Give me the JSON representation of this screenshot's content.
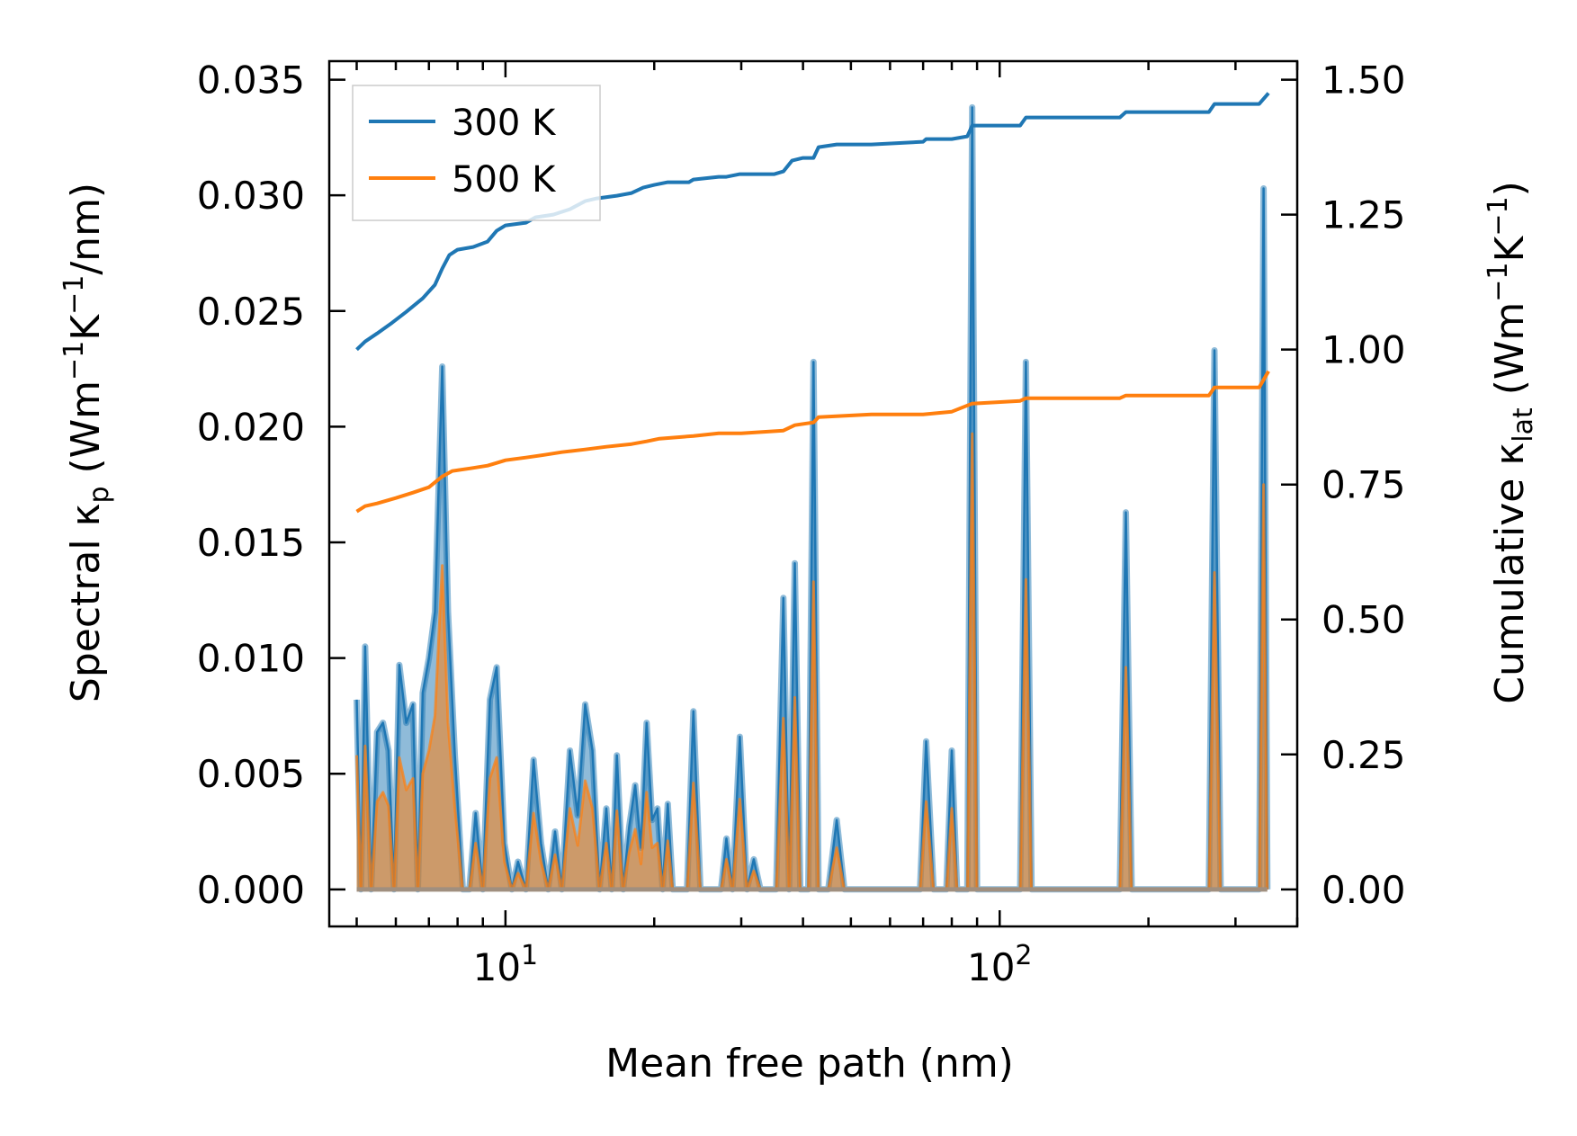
{
  "chart_data": {
    "type": "line+area",
    "x_scale": "log",
    "xlim": [
      4.4,
      400
    ],
    "xlabel": "Mean free path (nm)",
    "x_ticks_major": [
      {
        "value": 10,
        "base": "10",
        "exp": "1"
      },
      {
        "value": 100,
        "base": "10",
        "exp": "2"
      }
    ],
    "y_left": {
      "label_parts": [
        "Spectral κ",
        "p",
        " (Wm",
        "−1",
        "K",
        "−1",
        "/nm)"
      ],
      "lim": [
        -0.0016,
        0.0358
      ],
      "ticks": [
        0.0,
        0.005,
        0.01,
        0.015,
        0.02,
        0.025,
        0.03,
        0.035
      ],
      "tick_labels": [
        "0.000",
        "0.005",
        "0.010",
        "0.015",
        "0.020",
        "0.025",
        "0.030",
        "0.035"
      ]
    },
    "y_right": {
      "label_parts": [
        "Cumulative κ",
        "lat",
        " (Wm",
        "−1",
        "K",
        "−1",
        ")"
      ],
      "lim": [
        -0.0686,
        1.5343
      ],
      "ticks": [
        0.0,
        0.25,
        0.5,
        0.75,
        1.0,
        1.25,
        1.5
      ],
      "tick_labels": [
        "0.00",
        "0.25",
        "0.50",
        "0.75",
        "1.00",
        "1.25",
        "1.50"
      ]
    },
    "legend": {
      "position": "top-left",
      "entries": [
        "300 K",
        "500 K"
      ]
    },
    "colors": {
      "300 K": "#1f77b4",
      "500 K": "#ff7f0e"
    },
    "spectral": {
      "300 K": [
        [
          5.0,
          0.0082
        ],
        [
          5.1,
          0.0
        ],
        [
          5.2,
          0.0105
        ],
        [
          5.35,
          0.0
        ],
        [
          5.5,
          0.0068
        ],
        [
          5.65,
          0.0072
        ],
        [
          5.8,
          0.006
        ],
        [
          5.95,
          0.0
        ],
        [
          6.1,
          0.0097
        ],
        [
          6.3,
          0.0072
        ],
        [
          6.5,
          0.008
        ],
        [
          6.65,
          0.0
        ],
        [
          6.8,
          0.0085
        ],
        [
          7.0,
          0.01
        ],
        [
          7.2,
          0.012
        ],
        [
          7.45,
          0.0226
        ],
        [
          7.65,
          0.012
        ],
        [
          7.9,
          0.0058
        ],
        [
          8.2,
          0.0
        ],
        [
          8.45,
          0.0
        ],
        [
          8.7,
          0.0033
        ],
        [
          9.0,
          0.0
        ],
        [
          9.3,
          0.0082
        ],
        [
          9.6,
          0.0096
        ],
        [
          9.95,
          0.002
        ],
        [
          10.3,
          0.0
        ],
        [
          10.6,
          0.0012
        ],
        [
          11.0,
          0.0
        ],
        [
          11.4,
          0.0056
        ],
        [
          11.8,
          0.002
        ],
        [
          12.2,
          0.0
        ],
        [
          12.6,
          0.0025
        ],
        [
          13.0,
          0.0
        ],
        [
          13.5,
          0.006
        ],
        [
          14.0,
          0.0032
        ],
        [
          14.5,
          0.008
        ],
        [
          15.0,
          0.006
        ],
        [
          15.5,
          0.0
        ],
        [
          16.0,
          0.0035
        ],
        [
          16.4,
          0.0
        ],
        [
          16.8,
          0.0058
        ],
        [
          17.3,
          0.0
        ],
        [
          17.8,
          0.0027
        ],
        [
          18.3,
          0.0045
        ],
        [
          18.8,
          0.0018
        ],
        [
          19.3,
          0.0072
        ],
        [
          19.8,
          0.003
        ],
        [
          20.3,
          0.0035
        ],
        [
          20.8,
          0.0
        ],
        [
          21.3,
          0.0037
        ],
        [
          21.8,
          0.0
        ],
        [
          22.4,
          0.0
        ],
        [
          23.3,
          0.0
        ],
        [
          24.0,
          0.0077
        ],
        [
          24.8,
          0.0
        ],
        [
          26.0,
          0.0
        ],
        [
          27.3,
          0.0
        ],
        [
          28.0,
          0.0022
        ],
        [
          28.8,
          0.0
        ],
        [
          29.8,
          0.0066
        ],
        [
          30.8,
          0.0
        ],
        [
          31.8,
          0.0013
        ],
        [
          32.8,
          0.0
        ],
        [
          34.0,
          0.0
        ],
        [
          35.3,
          0.0
        ],
        [
          36.5,
          0.0126
        ],
        [
          37.5,
          0.0
        ],
        [
          38.5,
          0.0141
        ],
        [
          39.5,
          0.0
        ],
        [
          41.0,
          0.0
        ],
        [
          42.0,
          0.0228
        ],
        [
          43.0,
          0.0
        ],
        [
          45.0,
          0.0
        ],
        [
          46.8,
          0.003
        ],
        [
          48.5,
          0.0
        ],
        [
          55.0,
          0.0
        ],
        [
          62.0,
          0.0
        ],
        [
          69.0,
          0.0
        ],
        [
          71.0,
          0.0064
        ],
        [
          73.5,
          0.0
        ],
        [
          78.0,
          0.0
        ],
        [
          80.0,
          0.006
        ],
        [
          82.0,
          0.0
        ],
        [
          86.0,
          0.0
        ],
        [
          88.0,
          0.0338
        ],
        [
          90.0,
          0.0
        ],
        [
          100.0,
          0.0
        ],
        [
          110.0,
          0.0
        ],
        [
          113.0,
          0.0228
        ],
        [
          116.0,
          0.0
        ],
        [
          150.0,
          0.0
        ],
        [
          175.0,
          0.0
        ],
        [
          180.0,
          0.0163
        ],
        [
          185.0,
          0.0
        ],
        [
          240.0,
          0.0
        ],
        [
          265.0,
          0.0
        ],
        [
          272.0,
          0.0233
        ],
        [
          280.0,
          0.0
        ],
        [
          320.0,
          0.0
        ],
        [
          335.0,
          0.0
        ],
        [
          342.0,
          0.0303
        ],
        [
          348.0,
          0.0
        ]
      ],
      "500 K": [
        [
          5.0,
          0.0058
        ],
        [
          5.1,
          0.0
        ],
        [
          5.2,
          0.0062
        ],
        [
          5.35,
          0.0
        ],
        [
          5.5,
          0.0038
        ],
        [
          5.65,
          0.0042
        ],
        [
          5.8,
          0.0036
        ],
        [
          5.95,
          0.0
        ],
        [
          6.1,
          0.0057
        ],
        [
          6.3,
          0.0043
        ],
        [
          6.5,
          0.0048
        ],
        [
          6.65,
          0.0
        ],
        [
          6.8,
          0.005
        ],
        [
          7.0,
          0.006
        ],
        [
          7.2,
          0.0075
        ],
        [
          7.45,
          0.014
        ],
        [
          7.65,
          0.0072
        ],
        [
          7.9,
          0.0035
        ],
        [
          8.2,
          0.0
        ],
        [
          8.45,
          0.0
        ],
        [
          8.7,
          0.002
        ],
        [
          9.0,
          0.0
        ],
        [
          9.3,
          0.0048
        ],
        [
          9.6,
          0.0057
        ],
        [
          9.95,
          0.0012
        ],
        [
          10.3,
          0.0
        ],
        [
          10.6,
          0.0007
        ],
        [
          11.0,
          0.0
        ],
        [
          11.4,
          0.0033
        ],
        [
          11.8,
          0.0012
        ],
        [
          12.2,
          0.0
        ],
        [
          12.6,
          0.0015
        ],
        [
          13.0,
          0.0
        ],
        [
          13.5,
          0.0035
        ],
        [
          14.0,
          0.0019
        ],
        [
          14.5,
          0.0047
        ],
        [
          15.0,
          0.0035
        ],
        [
          15.5,
          0.0
        ],
        [
          16.0,
          0.002
        ],
        [
          16.4,
          0.0
        ],
        [
          16.8,
          0.0034
        ],
        [
          17.3,
          0.0
        ],
        [
          17.8,
          0.0016
        ],
        [
          18.3,
          0.0026
        ],
        [
          18.8,
          0.0011
        ],
        [
          19.3,
          0.0042
        ],
        [
          19.8,
          0.0018
        ],
        [
          20.3,
          0.002
        ],
        [
          20.8,
          0.0
        ],
        [
          21.3,
          0.0021
        ],
        [
          21.8,
          0.0
        ],
        [
          22.4,
          0.0
        ],
        [
          23.3,
          0.0
        ],
        [
          24.0,
          0.0046
        ],
        [
          24.8,
          0.0
        ],
        [
          26.0,
          0.0
        ],
        [
          27.3,
          0.0
        ],
        [
          28.0,
          0.0013
        ],
        [
          28.8,
          0.0
        ],
        [
          29.8,
          0.0039
        ],
        [
          30.8,
          0.0
        ],
        [
          31.8,
          0.0008
        ],
        [
          32.8,
          0.0
        ],
        [
          34.0,
          0.0
        ],
        [
          35.3,
          0.0
        ],
        [
          36.5,
          0.0074
        ],
        [
          37.5,
          0.0
        ],
        [
          38.5,
          0.0083
        ],
        [
          39.5,
          0.0
        ],
        [
          41.0,
          0.0
        ],
        [
          42.0,
          0.0133
        ],
        [
          43.0,
          0.0
        ],
        [
          45.0,
          0.0
        ],
        [
          46.8,
          0.0018
        ],
        [
          48.5,
          0.0
        ],
        [
          55.0,
          0.0
        ],
        [
          62.0,
          0.0
        ],
        [
          69.0,
          0.0
        ],
        [
          71.0,
          0.0038
        ],
        [
          73.5,
          0.0
        ],
        [
          78.0,
          0.0
        ],
        [
          80.0,
          0.0035
        ],
        [
          82.0,
          0.0
        ],
        [
          86.0,
          0.0
        ],
        [
          88.0,
          0.0197
        ],
        [
          90.0,
          0.0
        ],
        [
          100.0,
          0.0
        ],
        [
          110.0,
          0.0
        ],
        [
          113.0,
          0.0134
        ],
        [
          116.0,
          0.0
        ],
        [
          150.0,
          0.0
        ],
        [
          175.0,
          0.0
        ],
        [
          180.0,
          0.0096
        ],
        [
          185.0,
          0.0
        ],
        [
          240.0,
          0.0
        ],
        [
          265.0,
          0.0
        ],
        [
          272.0,
          0.0137
        ],
        [
          280.0,
          0.0
        ],
        [
          320.0,
          0.0
        ],
        [
          335.0,
          0.0
        ],
        [
          342.0,
          0.0175
        ],
        [
          348.0,
          0.0
        ]
      ]
    },
    "cumulative": {
      "300 K": [
        [
          5.0,
          1.0
        ],
        [
          5.2,
          1.015
        ],
        [
          5.5,
          1.03
        ],
        [
          5.9,
          1.05
        ],
        [
          6.3,
          1.07
        ],
        [
          6.8,
          1.095
        ],
        [
          7.2,
          1.12
        ],
        [
          7.45,
          1.15
        ],
        [
          7.7,
          1.175
        ],
        [
          8.0,
          1.185
        ],
        [
          8.6,
          1.19
        ],
        [
          9.2,
          1.2
        ],
        [
          9.6,
          1.22
        ],
        [
          10.0,
          1.23
        ],
        [
          11.0,
          1.235
        ],
        [
          11.5,
          1.245
        ],
        [
          12.5,
          1.25
        ],
        [
          13.5,
          1.26
        ],
        [
          14.5,
          1.275
        ],
        [
          15.3,
          1.28
        ],
        [
          16.8,
          1.285
        ],
        [
          18.0,
          1.29
        ],
        [
          19.0,
          1.3
        ],
        [
          20.0,
          1.305
        ],
        [
          21.3,
          1.31
        ],
        [
          23.5,
          1.31
        ],
        [
          24.0,
          1.315
        ],
        [
          27.0,
          1.32
        ],
        [
          28.0,
          1.32
        ],
        [
          29.8,
          1.325
        ],
        [
          35.0,
          1.325
        ],
        [
          36.5,
          1.33
        ],
        [
          38.0,
          1.35
        ],
        [
          40.0,
          1.355
        ],
        [
          42.0,
          1.355
        ],
        [
          43.0,
          1.375
        ],
        [
          46.8,
          1.38
        ],
        [
          55.0,
          1.38
        ],
        [
          70.0,
          1.385
        ],
        [
          71.0,
          1.39
        ],
        [
          80.0,
          1.39
        ],
        [
          86.0,
          1.395
        ],
        [
          88.0,
          1.415
        ],
        [
          110.0,
          1.415
        ],
        [
          113.0,
          1.43
        ],
        [
          175.0,
          1.43
        ],
        [
          180.0,
          1.44
        ],
        [
          265.0,
          1.44
        ],
        [
          272.0,
          1.455
        ],
        [
          335.0,
          1.455
        ],
        [
          350.0,
          1.475
        ]
      ],
      "500 K": [
        [
          5.0,
          0.7
        ],
        [
          5.2,
          0.71
        ],
        [
          5.5,
          0.715
        ],
        [
          6.0,
          0.725
        ],
        [
          6.5,
          0.735
        ],
        [
          7.0,
          0.745
        ],
        [
          7.45,
          0.765
        ],
        [
          7.8,
          0.775
        ],
        [
          8.5,
          0.78
        ],
        [
          9.2,
          0.785
        ],
        [
          9.6,
          0.79
        ],
        [
          10.0,
          0.795
        ],
        [
          11.0,
          0.8
        ],
        [
          12.0,
          0.805
        ],
        [
          13.0,
          0.81
        ],
        [
          14.5,
          0.815
        ],
        [
          16.0,
          0.82
        ],
        [
          18.0,
          0.825
        ],
        [
          19.3,
          0.83
        ],
        [
          20.5,
          0.835
        ],
        [
          24.0,
          0.84
        ],
        [
          27.0,
          0.845
        ],
        [
          30.0,
          0.845
        ],
        [
          36.5,
          0.85
        ],
        [
          38.5,
          0.86
        ],
        [
          42.0,
          0.865
        ],
        [
          43.0,
          0.875
        ],
        [
          55.0,
          0.88
        ],
        [
          70.0,
          0.88
        ],
        [
          80.0,
          0.885
        ],
        [
          88.0,
          0.9
        ],
        [
          110.0,
          0.905
        ],
        [
          113.0,
          0.91
        ],
        [
          175.0,
          0.91
        ],
        [
          180.0,
          0.915
        ],
        [
          265.0,
          0.915
        ],
        [
          272.0,
          0.93
        ],
        [
          335.0,
          0.93
        ],
        [
          350.0,
          0.96
        ]
      ]
    }
  }
}
